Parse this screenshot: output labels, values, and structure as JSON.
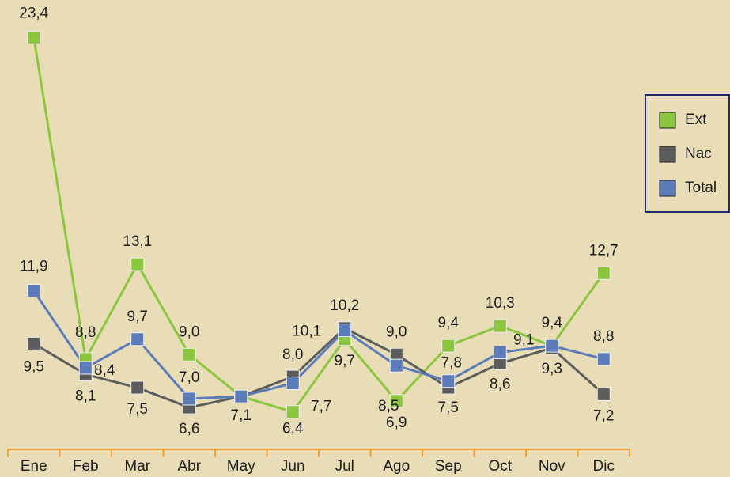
{
  "chart_data": {
    "type": "line",
    "categories": [
      "Ene",
      "Feb",
      "Mar",
      "Abr",
      "May",
      "Jun",
      "Jul",
      "Ago",
      "Sep",
      "Oct",
      "Nov",
      "Dic"
    ],
    "series": [
      {
        "name": "Ext",
        "color": "#8cc63e",
        "values": [
          23.4,
          8.8,
          13.1,
          9.0,
          7.1,
          6.4,
          9.7,
          6.9,
          9.4,
          10.3,
          9.4,
          12.7
        ],
        "value_labels": [
          "23,4",
          "8,8",
          "13,1",
          "9,0",
          null,
          "6,4",
          "9,7",
          "6,9",
          "9,4",
          "10,3",
          "9,4",
          "12,7"
        ]
      },
      {
        "name": "Nac",
        "color": "#5c5c5c",
        "values": [
          9.5,
          8.1,
          7.5,
          6.6,
          7.1,
          8.0,
          10.2,
          9.0,
          7.5,
          8.6,
          9.3,
          7.2
        ],
        "value_labels": [
          "9,5",
          "8,1",
          "7,5",
          "6,6",
          "7,1",
          "8,0",
          "10,2",
          "9,0",
          "7,5",
          "8,6",
          "9,3",
          "7,2"
        ]
      },
      {
        "name": "Total",
        "color": "#5b7cb8",
        "values": [
          11.9,
          8.4,
          9.7,
          7.0,
          7.1,
          7.7,
          10.1,
          8.5,
          7.8,
          9.1,
          9.4,
          8.8
        ],
        "value_labels": [
          "11,9",
          "8,4",
          "9,7",
          "7,0",
          null,
          "7,7",
          "10,1",
          "8,5",
          "7,8",
          "9,1",
          null,
          "8,8"
        ]
      }
    ],
    "ylim": [
      4.7,
      25.1
    ],
    "legend": "right",
    "axis_color": "#f0a033"
  }
}
